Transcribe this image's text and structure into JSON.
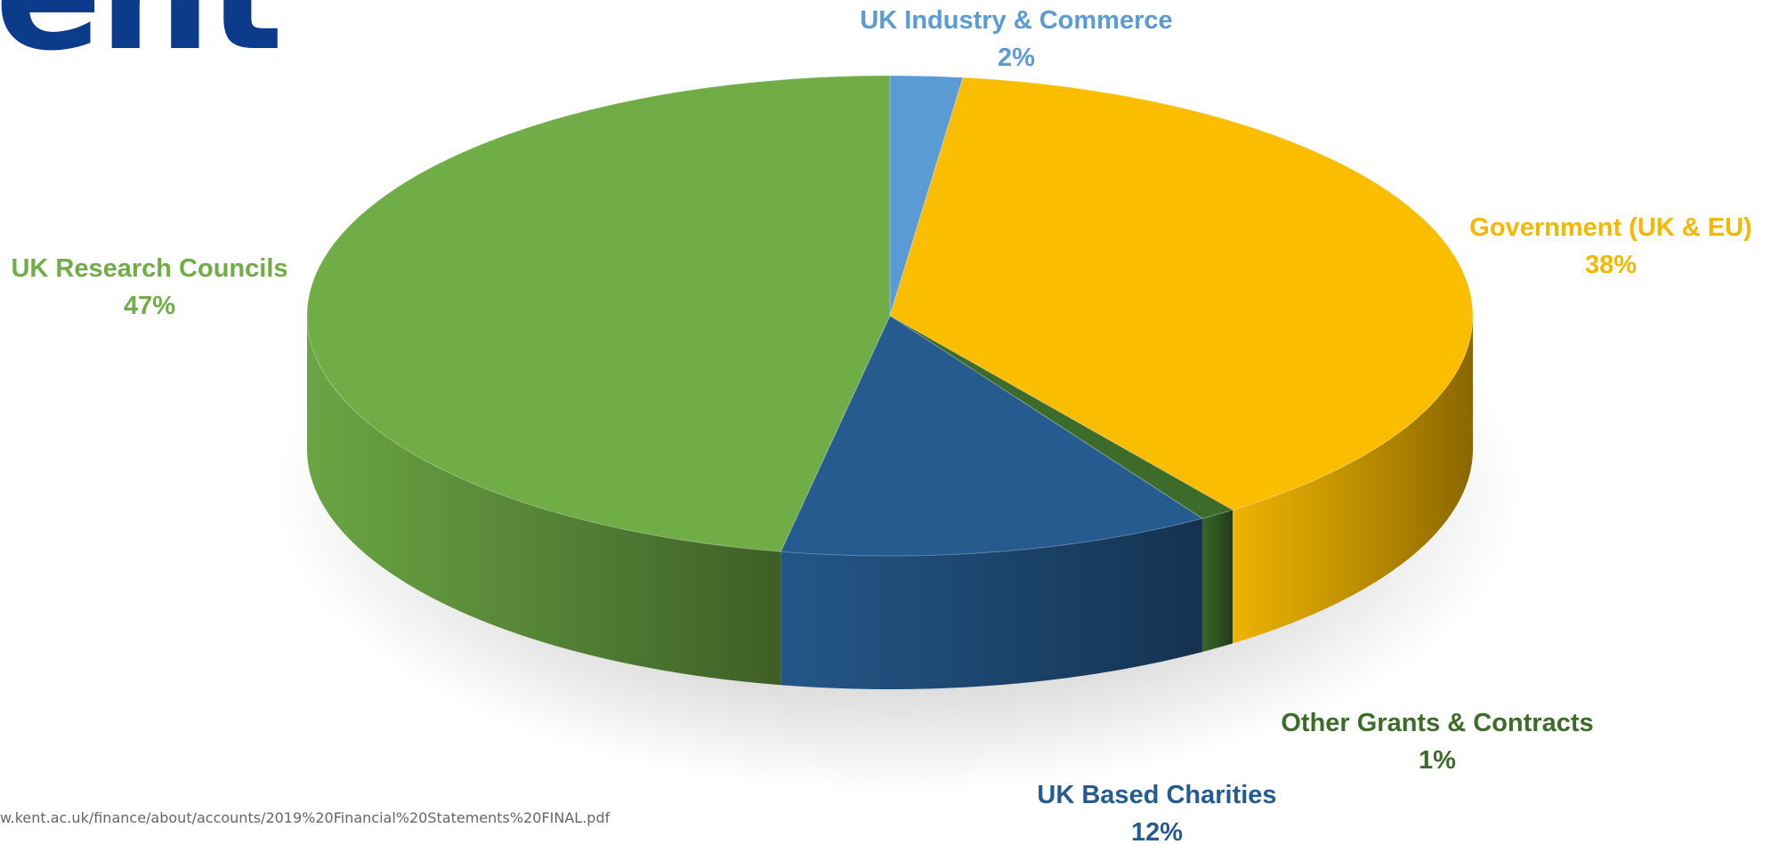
{
  "header": {
    "logo_text": "ent"
  },
  "source_note": "w.kent.ac.uk/finance/about/accounts/2019%20Financial%20Statements%20FINAL.pdf",
  "chart_data": {
    "type": "pie",
    "style": "3d",
    "slices": [
      {
        "name": "UK Industry & Commerce",
        "value": 2,
        "display": "2%",
        "color": "#5b9bd5",
        "label_color": "#5b9bd5"
      },
      {
        "name": "Government (UK & EU)",
        "value": 38,
        "display": "38%",
        "color": "#fbbd00",
        "label_color": "#f5b800"
      },
      {
        "name": "Other Grants & Contracts",
        "value": 1,
        "display": "1%",
        "color": "#3d6b2a",
        "label_color": "#3d6b2a"
      },
      {
        "name": "UK Based Charities",
        "value": 12,
        "display": "12%",
        "color": "#255b8f",
        "label_color": "#255b8f"
      },
      {
        "name": "UK Research Councils",
        "value": 47,
        "display": "47%",
        "color": "#70ad47",
        "label_color": "#70ad47"
      }
    ]
  }
}
